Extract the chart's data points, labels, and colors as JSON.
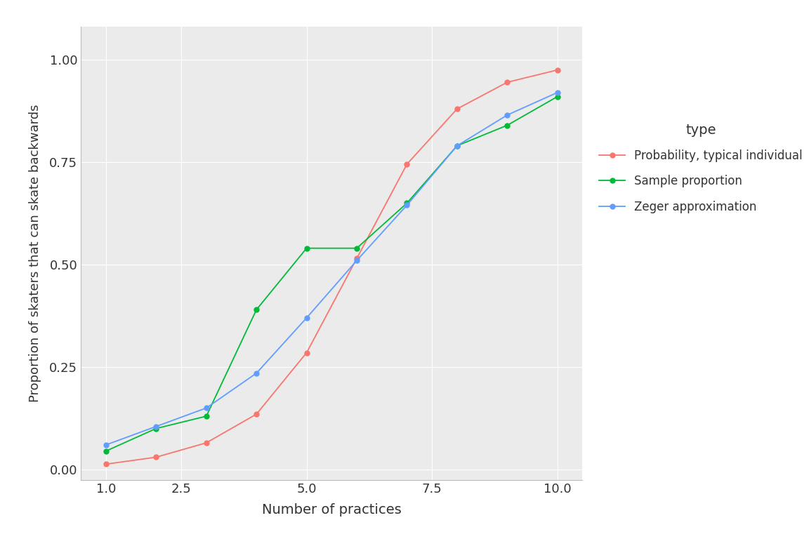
{
  "x": [
    1,
    2,
    3,
    4,
    5,
    6,
    7,
    8,
    9,
    10
  ],
  "red_y": [
    0.013,
    0.03,
    0.065,
    0.135,
    0.285,
    0.515,
    0.745,
    0.88,
    0.945,
    0.975
  ],
  "green_y": [
    0.045,
    0.1,
    0.13,
    0.39,
    0.54,
    0.54,
    0.65,
    0.79,
    0.84,
    0.91
  ],
  "blue_y": [
    0.06,
    0.105,
    0.15,
    0.235,
    0.37,
    0.51,
    0.645,
    0.79,
    0.865,
    0.92
  ],
  "red_color": "#F8766D",
  "green_color": "#00BA38",
  "blue_color": "#619CFF",
  "red_label": "Probability, typical individual",
  "green_label": "Sample proportion",
  "blue_label": "Zeger approximation",
  "xlabel": "Number of practices",
  "ylabel": "Proportion of skaters that can skate backwards",
  "legend_title": "type",
  "xlim": [
    0.5,
    10.5
  ],
  "ylim": [
    -0.025,
    1.08
  ],
  "xticks": [
    1,
    2.5,
    5.0,
    7.5,
    10.0
  ],
  "yticks": [
    0.0,
    0.25,
    0.5,
    0.75,
    1.0
  ],
  "background_color": "#EBEBEB",
  "grid_color": "#FFFFFF",
  "marker_size": 5,
  "linewidth": 1.3
}
